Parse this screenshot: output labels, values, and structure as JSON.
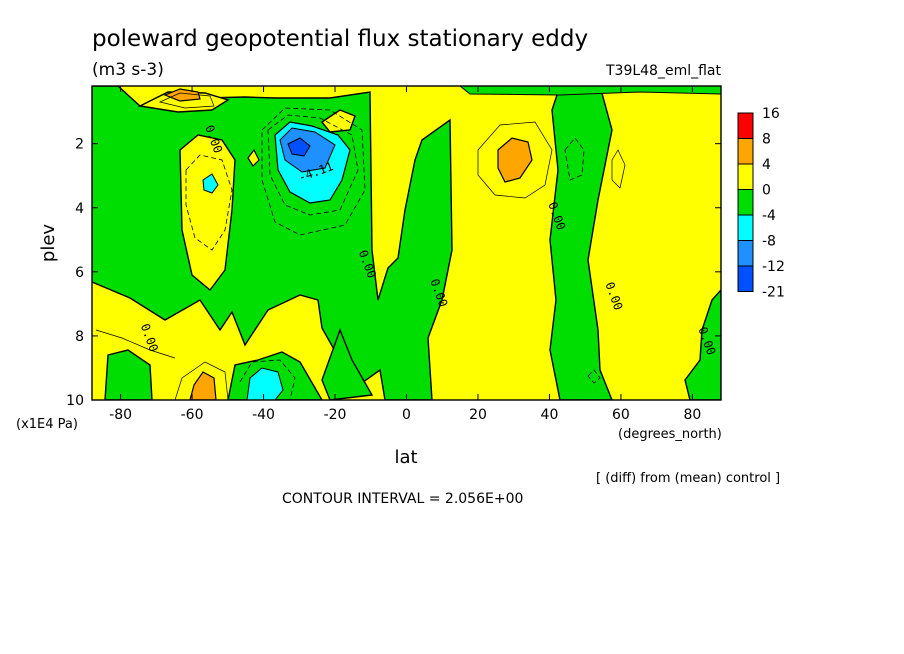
{
  "chart_data": {
    "type": "heatmap",
    "title": "poleward geopotential flux stationary eddy",
    "units": "(m3 s-3)",
    "run_label": "T39L48_eml_flat",
    "xlabel": "lat",
    "x_units": "(degrees_north)",
    "ylabel": "plev",
    "y_units": "(x1E4 Pa)",
    "xlim": [
      -88,
      88
    ],
    "ylim": [
      10,
      0.2
    ],
    "x_ticks": [
      -80,
      -60,
      -40,
      -20,
      0,
      20,
      40,
      60,
      80
    ],
    "x_tick_labels": [
      "-80",
      "-60",
      "-40",
      "-20",
      "0",
      "20",
      "40",
      "60",
      "80"
    ],
    "y_ticks": [
      2,
      4,
      6,
      8,
      10
    ],
    "y_tick_labels": [
      "2",
      "4",
      "6",
      "8",
      "10"
    ],
    "contour_interval_text": "CONTOUR INTERVAL = 2.056E+00",
    "footnote": "[ (diff) from (mean) control ]",
    "contour_labels": [
      {
        "text": "0.00",
        "lat": -55,
        "plev": 1.9
      },
      {
        "text": "0.00",
        "lat": -12,
        "plev": 5.8
      },
      {
        "text": "0.00",
        "lat": 8,
        "plev": 6.7
      },
      {
        "text": "0.00",
        "lat": 41,
        "plev": 4.3
      },
      {
        "text": "0.00",
        "lat": 57,
        "plev": 6.8
      },
      {
        "text": "0.00",
        "lat": -73,
        "plev": 8.1
      },
      {
        "text": "0.00",
        "lat": 83,
        "plev": 8.2
      },
      {
        "text": "-4.11",
        "lat": -25,
        "plev": 3.0
      }
    ],
    "colorbar": {
      "levels": [
        "16",
        "8",
        "4",
        "0",
        "-4",
        "-8",
        "-12",
        "-21"
      ],
      "colors": [
        "#ff0000",
        "#ffa500",
        "#ffff00",
        "#00dd00",
        "#00ffff",
        "#1e90ff",
        "#0050ff"
      ]
    },
    "colors": {
      "background_positive": "#ffff00",
      "negative": "#00dd00",
      "strong_positive": "#ffa500",
      "strong_negative": "#00ffff",
      "very_negative": "#1e90ff",
      "extreme_negative": "#0050ff"
    }
  }
}
